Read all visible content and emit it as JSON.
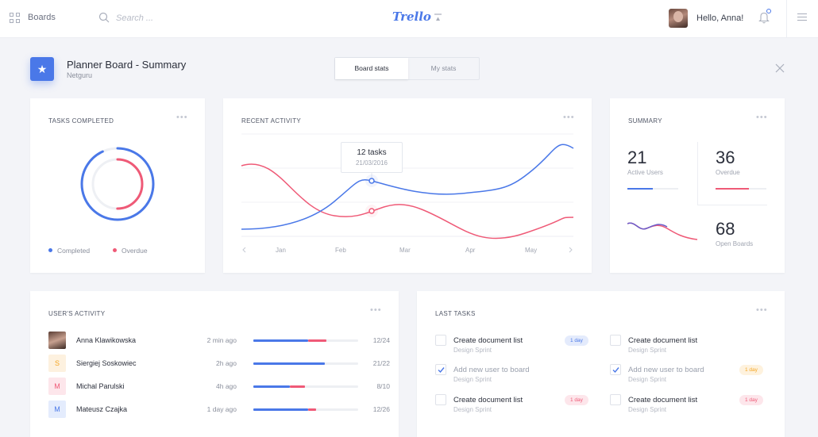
{
  "topbar": {
    "boards_label": "Boards",
    "search_placeholder": "Search ...",
    "logo": "Trello",
    "greeting": "Hello, Anna!",
    "icons": [
      "grid-icon",
      "search-icon",
      "sort-icon",
      "bell-icon",
      "menu-icon"
    ]
  },
  "header": {
    "title": "Planner Board - Summary",
    "subtitle": "Netguru",
    "icon": "star-icon",
    "tabs": [
      {
        "label": "Board stats",
        "active": true
      },
      {
        "label": "My stats",
        "active": false
      }
    ]
  },
  "tasks_completed": {
    "title": "TASKS COMPLETED",
    "legend": [
      "Completed",
      "Overdue"
    ],
    "completed_fraction": 0.93,
    "overdue_fraction": 0.5
  },
  "recent_activity": {
    "title": "RECENT ACTIVITY",
    "tooltip_value": "12 tasks",
    "tooltip_date": "21/03/2016",
    "months": [
      "Jan",
      "Feb",
      "Mar",
      "Apr",
      "May"
    ]
  },
  "summary": {
    "title": "SUMMARY",
    "active_users": {
      "value": "21",
      "label": "Active Users",
      "fraction": 0.5
    },
    "overdue": {
      "value": "36",
      "label": "Overdue",
      "fraction": 0.65
    },
    "open_boards": {
      "value": "68",
      "label": "Open Boards"
    }
  },
  "users_activity": {
    "title": "USER'S ACTIVITY",
    "rows": [
      {
        "initial": "",
        "name": "Anna Klawikowska",
        "time": "2 min ago",
        "progress": "12/24",
        "done": 0.52,
        "overdue": 0.18
      },
      {
        "initial": "S",
        "name": "Siergiej Soskowiec",
        "time": "2h ago",
        "progress": "21/22",
        "done": 0.68,
        "overdue": 0
      },
      {
        "initial": "M",
        "name": "Michal Parulski",
        "time": "4h ago",
        "progress": "8/10",
        "done": 0.35,
        "overdue": 0.14
      },
      {
        "initial": "M",
        "name": "Mateusz Czajka",
        "time": "1 day ago",
        "progress": "12/26",
        "done": 0.52,
        "overdue": 0.08
      }
    ]
  },
  "last_tasks": {
    "title": "LAST TASKS",
    "items": [
      {
        "name": "Create document list",
        "sub": "Design Sprint",
        "done": false,
        "badge": "1 day",
        "badge_color": "#4a78e8"
      },
      {
        "name": "Create document list",
        "sub": "Design Sprint",
        "done": false,
        "badge": "",
        "badge_color": ""
      },
      {
        "name": "Add new user to board",
        "sub": "Design Sprint",
        "done": true,
        "badge": "",
        "badge_color": ""
      },
      {
        "name": "Add new user to board",
        "sub": "Design Sprint",
        "done": true,
        "badge": "1 day",
        "badge_color": "#f5a623"
      },
      {
        "name": "Create document list",
        "sub": "Design Sprint",
        "done": false,
        "badge": "1 day",
        "badge_color": "#ef5a77"
      },
      {
        "name": "Create document list",
        "sub": "Design Sprint",
        "done": false,
        "badge": "1 day",
        "badge_color": "#ef5a77"
      }
    ]
  },
  "colors": {
    "blue": "#4a78e8",
    "pink": "#ef5a77",
    "orange": "#f5a623"
  }
}
